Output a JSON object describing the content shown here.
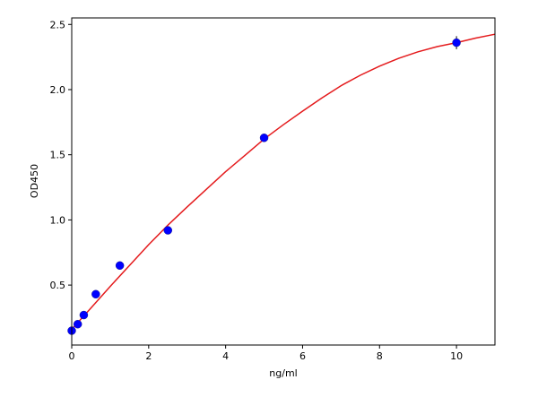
{
  "chart_data": {
    "type": "scatter",
    "xlabel": "ng/ml",
    "ylabel": "OD450",
    "xlim": [
      0,
      11
    ],
    "ylim": [
      0.04,
      2.55
    ],
    "grid": false,
    "legend": "none",
    "x_ticks": [
      0,
      2,
      4,
      6,
      8,
      10
    ],
    "y_ticks": [
      0.5,
      1.0,
      1.5,
      2.0,
      2.5
    ],
    "x_tick_labels": [
      "0",
      "2",
      "4",
      "6",
      "8",
      "10"
    ],
    "y_tick_labels": [
      "0.5",
      "1.0",
      "1.5",
      "2.0",
      "2.5"
    ],
    "series": [
      {
        "kind": "points",
        "color": "#0000ff",
        "x": [
          0,
          0.156,
          0.313,
          0.625,
          1.25,
          2.5,
          5,
          10
        ],
        "y": [
          0.15,
          0.2,
          0.27,
          0.43,
          0.65,
          0.92,
          1.63,
          2.36
        ],
        "yerr": [
          0,
          0,
          0,
          0,
          0,
          0,
          0.01,
          0.05
        ]
      },
      {
        "kind": "fit-curve",
        "color": "#e41a1c",
        "x": [
          0,
          0.5,
          1,
          1.5,
          2,
          2.5,
          3,
          3.5,
          4,
          4.5,
          5,
          5.5,
          6,
          6.5,
          7,
          7.5,
          8,
          8.5,
          9,
          9.5,
          10,
          10.5,
          11
        ],
        "y": [
          0.16,
          0.325,
          0.49,
          0.65,
          0.81,
          0.96,
          1.1,
          1.235,
          1.37,
          1.495,
          1.62,
          1.73,
          1.835,
          1.935,
          2.03,
          2.11,
          2.18,
          2.24,
          2.29,
          2.33,
          2.36,
          2.395,
          2.425
        ]
      }
    ]
  }
}
